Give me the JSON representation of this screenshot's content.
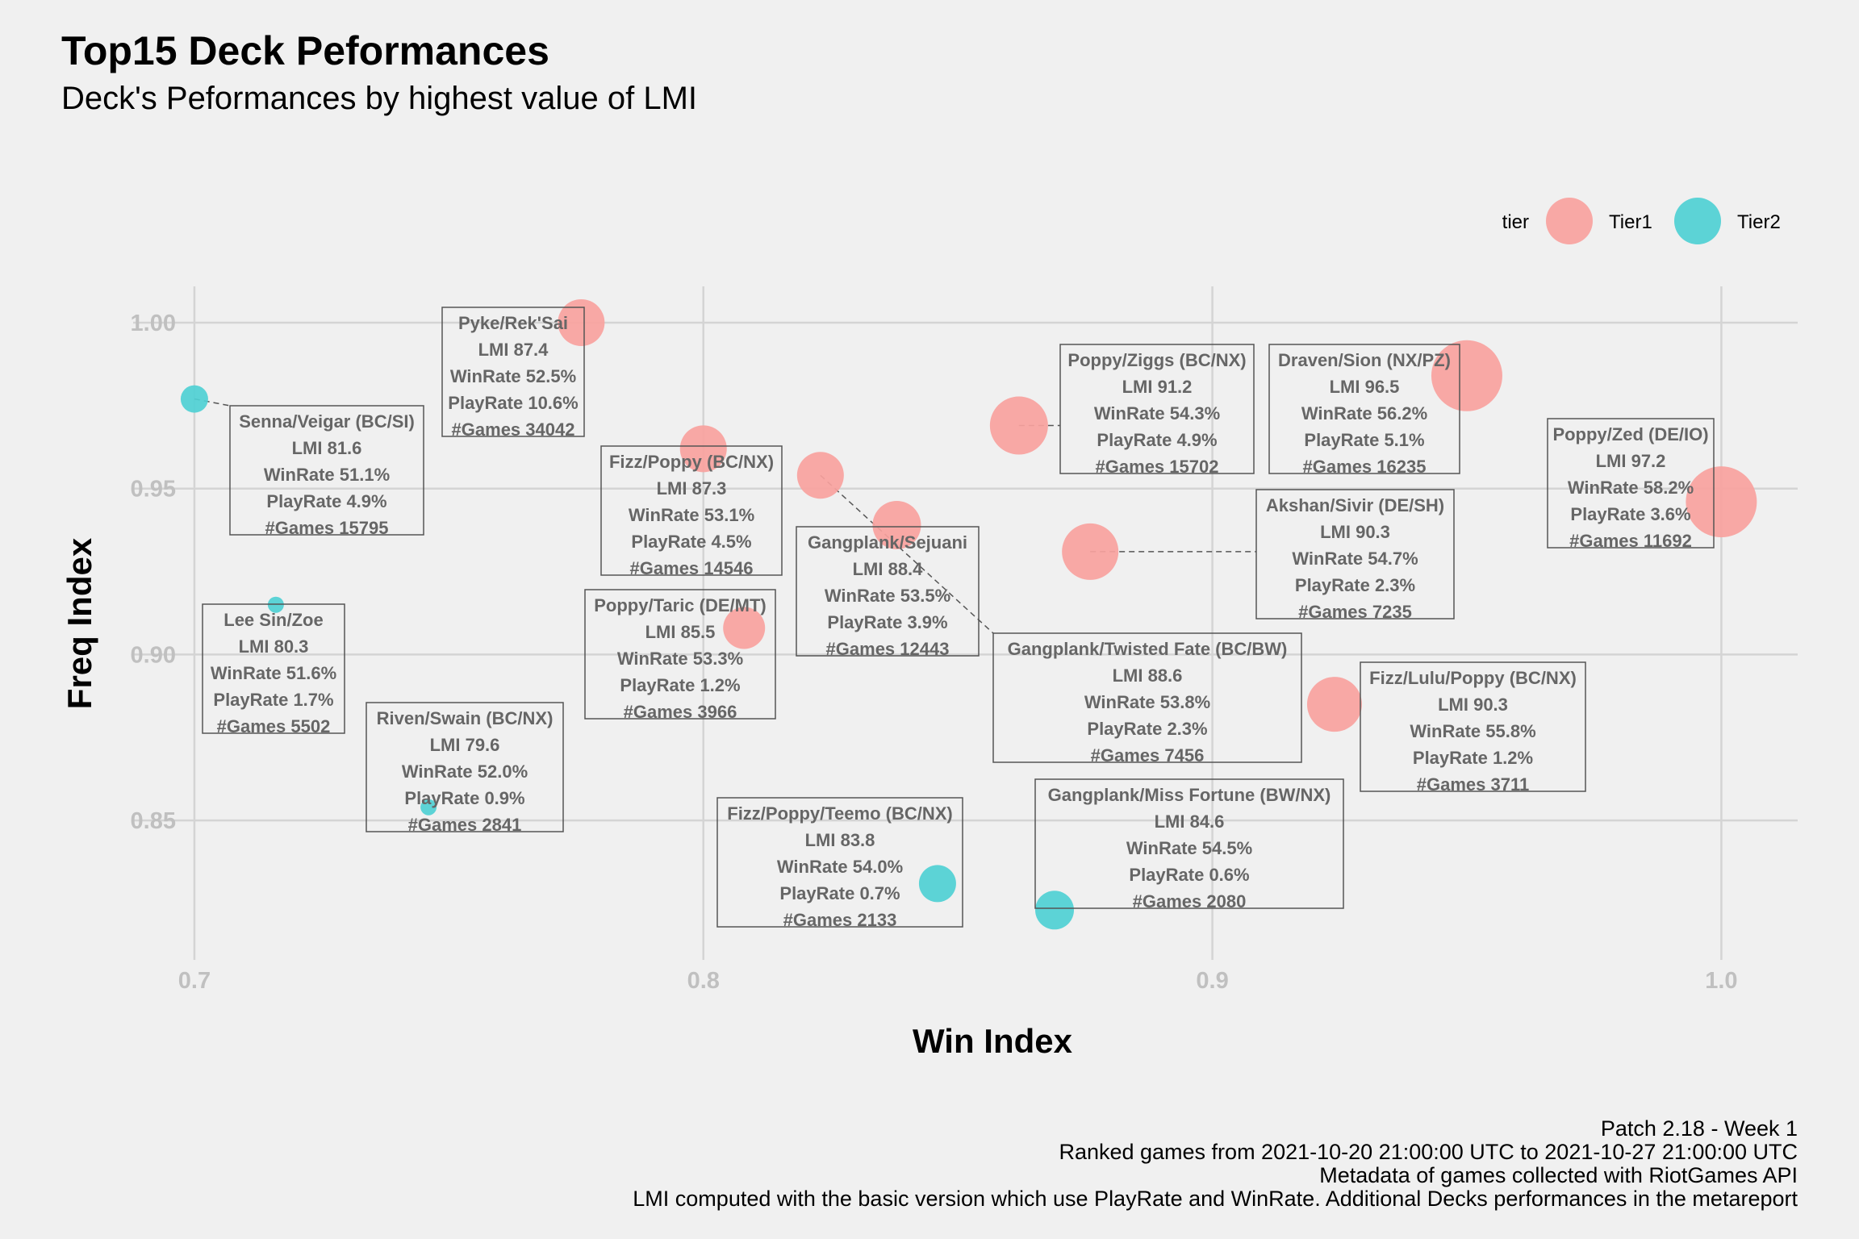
{
  "title": "Top15 Deck Peformances",
  "subtitle": "Deck's Peformances by highest value of LMI",
  "caption": [
    "Patch 2.18 - Week 1",
    "Ranked games from 2021-10-20 21:00:00 UTC to 2021-10-27 21:00:00 UTC",
    "Metadata of games collected with RiotGames API",
    "LMI computed with the basic version which use PlayRate and WinRate. Additional Decks performances in the metareport"
  ],
  "colors": {
    "Tier1": "#f8a29e",
    "Tier2": "#4fd0d4",
    "grid": "#d4d4d4"
  },
  "chart_data": {
    "type": "scatter",
    "xlabel": "Win Index",
    "ylabel": "Freq Index",
    "xlim": [
      0.684,
      1.015
    ],
    "ylim": [
      0.808,
      1.017
    ],
    "xticks": [
      0.7,
      0.8,
      0.9,
      1.0
    ],
    "xtick_labels": [
      "0.7",
      "0.8",
      "0.9",
      "1.0"
    ],
    "yticks": [
      0.85,
      0.9,
      0.95,
      1.0
    ],
    "ytick_labels": [
      "0.85",
      "0.90",
      "0.95",
      "1.00"
    ],
    "grid": true,
    "legend": {
      "title": "tier",
      "position": "top-right",
      "entries": [
        "Tier1",
        "Tier2"
      ]
    },
    "points": [
      {
        "deck": "Pyke/Rek'Sai",
        "x": 0.776,
        "y": 1.0,
        "tier": "Tier1",
        "lines": [
          "Pyke/Rek'Sai",
          "LMI 87.4",
          "WinRate 52.5%",
          "PlayRate 10.6%",
          "#Games 34042"
        ]
      },
      {
        "deck": "Senna/Veigar (BC/SI)",
        "x": 0.7,
        "y": 0.977,
        "tier": "Tier2",
        "lines": [
          "Senna/Veigar (BC/SI)",
          "LMI 81.6",
          "WinRate 51.1%",
          "PlayRate 4.9%",
          "#Games 15795"
        ]
      },
      {
        "deck": "Poppy/Ziggs (BC/NX)",
        "x": 0.862,
        "y": 0.969,
        "tier": "Tier1",
        "lines": [
          "Poppy/Ziggs (BC/NX)",
          "LMI 91.2",
          "WinRate 54.3%",
          "PlayRate 4.9%",
          "#Games 15702"
        ]
      },
      {
        "deck": "Draven/Sion (NX/PZ)",
        "x": 0.95,
        "y": 0.984,
        "tier": "Tier1",
        "lines": [
          "Draven/Sion (NX/PZ)",
          "LMI 96.5",
          "WinRate 56.2%",
          "PlayRate 5.1%",
          "#Games 16235"
        ]
      },
      {
        "deck": "Poppy/Zed (DE/IO)",
        "x": 1.0,
        "y": 0.946,
        "tier": "Tier1",
        "lines": [
          "Poppy/Zed (DE/IO)",
          "LMI 97.2",
          "WinRate 58.2%",
          "PlayRate 3.6%",
          "#Games 11692"
        ]
      },
      {
        "deck": "Fizz/Poppy (BC/NX)",
        "x": 0.8,
        "y": 0.962,
        "tier": "Tier1",
        "lines": [
          "Fizz/Poppy (BC/NX)",
          "LMI 87.3",
          "WinRate 53.1%",
          "PlayRate 4.5%",
          "#Games 14546"
        ]
      },
      {
        "deck": "Gangplank/Sejuani",
        "x": 0.838,
        "y": 0.939,
        "tier": "Tier1",
        "lines": [
          "Gangplank/Sejuani",
          "LMI 88.4",
          "WinRate 53.5%",
          "PlayRate 3.9%",
          "#Games 12443"
        ]
      },
      {
        "deck": "Gangplank/Twisted Fate (BC/BW)",
        "x": 0.823,
        "y": 0.954,
        "tier": "Tier1",
        "lines": [
          "Gangplank/Twisted Fate (BC/BW)",
          "LMI 88.6",
          "WinRate 53.8%",
          "PlayRate 2.3%",
          "#Games 7456"
        ]
      },
      {
        "deck": "Akshan/Sivir (DE/SH)",
        "x": 0.876,
        "y": 0.931,
        "tier": "Tier1",
        "lines": [
          "Akshan/Sivir (DE/SH)",
          "LMI 90.3",
          "WinRate 54.7%",
          "PlayRate 2.3%",
          "#Games 7235"
        ]
      },
      {
        "deck": "Lee Sin/Zoe",
        "x": 0.716,
        "y": 0.915,
        "tier": "Tier2",
        "lines": [
          "Lee Sin/Zoe",
          "LMI 80.3",
          "WinRate 51.6%",
          "PlayRate 1.7%",
          "#Games 5502"
        ]
      },
      {
        "deck": "Poppy/Taric (DE/MT)",
        "x": 0.808,
        "y": 0.908,
        "tier": "Tier1",
        "lines": [
          "Poppy/Taric (DE/MT)",
          "LMI 85.5",
          "WinRate 53.3%",
          "PlayRate 1.2%",
          "#Games 3966"
        ]
      },
      {
        "deck": "Fizz/Lulu/Poppy (BC/NX)",
        "x": 0.924,
        "y": 0.885,
        "tier": "Tier1",
        "lines": [
          "Fizz/Lulu/Poppy (BC/NX)",
          "LMI 90.3",
          "WinRate 55.8%",
          "PlayRate 1.2%",
          "#Games 3711"
        ]
      },
      {
        "deck": "Riven/Swain (BC/NX)",
        "x": 0.746,
        "y": 0.854,
        "tier": "Tier2",
        "lines": [
          "Riven/Swain (BC/NX)",
          "LMI 79.6",
          "WinRate 52.0%",
          "PlayRate 0.9%",
          "#Games 2841"
        ]
      },
      {
        "deck": "Fizz/Poppy/Teemo (BC/NX)",
        "x": 0.846,
        "y": 0.831,
        "tier": "Tier2",
        "lines": [
          "Fizz/Poppy/Teemo (BC/NX)",
          "LMI 83.8",
          "WinRate 54.0%",
          "PlayRate 0.7%",
          "#Games 2133"
        ]
      },
      {
        "deck": "Gangplank/Miss Fortune (BW/NX)",
        "x": 0.869,
        "y": 0.823,
        "tier": "Tier2",
        "lines": [
          "Gangplank/Miss Fortune (BW/NX)",
          "LMI 84.6",
          "WinRate 54.5%",
          "PlayRate 0.6%",
          "#Games 2080"
        ]
      }
    ]
  }
}
